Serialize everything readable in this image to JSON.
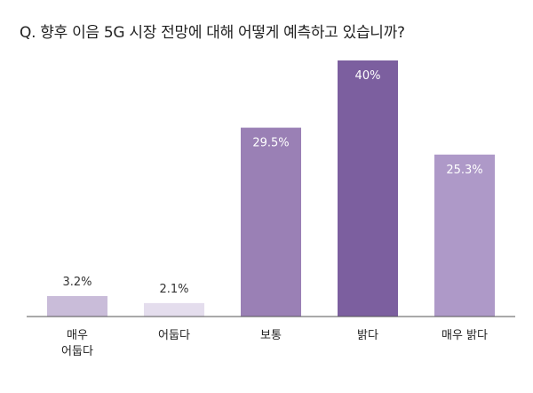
{
  "chart_data": {
    "type": "bar",
    "title": "Q. 향후 이음 5G 시장 전망에 대해 어떻게 예측하고 있습니까?",
    "categories": [
      [
        "매우",
        "어둡다"
      ],
      [
        "어둡다"
      ],
      [
        "보통"
      ],
      [
        "밝다"
      ],
      [
        "매우 밝다"
      ]
    ],
    "values": [
      3.2,
      2.1,
      29.5,
      40,
      25.3
    ],
    "value_labels": [
      "3.2%",
      "2.1%",
      "29.5%",
      "40%",
      "25.3%"
    ],
    "bar_colors": [
      "#c9bcd9",
      "#e4dded",
      "#9a80b5",
      "#7c5f9f",
      "#ae99c8"
    ],
    "value_label_colors": [
      "#333333",
      "#333333",
      "#ffffff",
      "#ffffff",
      "#ffffff"
    ],
    "ylim": [
      0,
      40
    ],
    "grid": false,
    "legend": "none",
    "axis_color": "#555555"
  }
}
